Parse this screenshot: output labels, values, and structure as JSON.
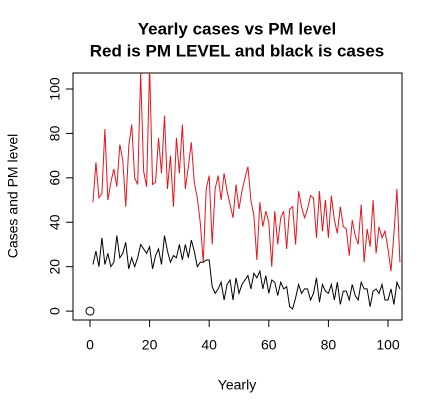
{
  "chart_data": {
    "type": "line",
    "title": "Yearly cases vs PM level",
    "subtitle": "Red is PM LEVEL and black is cases",
    "x_label": "Yearly",
    "y_label": "Cases and PM level",
    "xlim": [
      -5.7,
      104.7
    ],
    "ylim": [
      -4,
      107.2
    ],
    "xticks": [
      0,
      20,
      40,
      60,
      80,
      100
    ],
    "yticks": [
      0,
      20,
      40,
      60,
      80,
      100
    ],
    "x": [
      1,
      2,
      3,
      4,
      5,
      6,
      7,
      8,
      9,
      10,
      11,
      12,
      13,
      14,
      15,
      16,
      17,
      18,
      19,
      20,
      21,
      22,
      23,
      24,
      25,
      26,
      27,
      28,
      29,
      30,
      31,
      32,
      33,
      34,
      35,
      36,
      37,
      38,
      39,
      40,
      41,
      42,
      43,
      44,
      45,
      46,
      47,
      48,
      49,
      50,
      51,
      52,
      53,
      54,
      55,
      56,
      57,
      58,
      59,
      60,
      61,
      62,
      63,
      64,
      65,
      66,
      67,
      68,
      69,
      70,
      71,
      72,
      73,
      74,
      75,
      76,
      77,
      78,
      79,
      80,
      81,
      82,
      83,
      84,
      85,
      86,
      87,
      88,
      89,
      90,
      91,
      92,
      93,
      94,
      95,
      96,
      97,
      98,
      99,
      100,
      101,
      102,
      103,
      104
    ],
    "series": [
      {
        "color": "#e8141c",
        "values": [
          49,
          67,
          51,
          53,
          82,
          50,
          58,
          64,
          56,
          75,
          68,
          47,
          74,
          84,
          60,
          57,
          107,
          63,
          56,
          110,
          57,
          58,
          78,
          62,
          88,
          55,
          70,
          47,
          78,
          62,
          84,
          55,
          65,
          76,
          58,
          51,
          40,
          22,
          55,
          61,
          30,
          55,
          61,
          50,
          62,
          54,
          48,
          42,
          57,
          46,
          54,
          60,
          65,
          50,
          43,
          23,
          49,
          38,
          45,
          40,
          20,
          45,
          30,
          42,
          45,
          28,
          46,
          47,
          30,
          54,
          47,
          42,
          46,
          52,
          51,
          33,
          54,
          36,
          50,
          33,
          52,
          41,
          35,
          47,
          38,
          37,
          25,
          41,
          34,
          30,
          48,
          22,
          37,
          29,
          50,
          26,
          38,
          33,
          36,
          28,
          18,
          35,
          55,
          22
        ]
      },
      {
        "color": "#000000",
        "values": [
          21,
          27,
          20,
          33,
          21,
          26,
          20,
          22,
          34,
          24,
          26,
          31,
          19,
          24,
          20,
          24,
          30,
          28,
          26,
          29,
          19,
          25,
          28,
          21,
          34,
          27,
          22,
          25,
          24,
          30,
          23,
          30,
          24,
          32,
          27,
          20,
          22,
          22,
          23,
          23,
          11,
          8,
          10,
          13,
          5,
          12,
          14,
          5,
          15,
          8,
          12,
          14,
          16,
          10,
          17,
          15,
          18,
          10,
          16,
          8,
          14,
          13,
          7,
          13,
          10,
          11,
          2,
          1,
          6,
          12,
          8,
          10,
          10,
          5,
          8,
          15,
          4,
          12,
          9,
          8,
          12,
          5,
          13,
          3,
          9,
          9,
          5,
          12,
          7,
          5,
          13,
          10,
          10,
          2,
          9,
          10,
          8,
          12,
          5,
          5,
          10,
          3,
          13,
          10
        ]
      },
      {
        "color": "#000000",
        "marker": "circle",
        "x": [
          0
        ],
        "values": [
          0
        ]
      }
    ]
  }
}
